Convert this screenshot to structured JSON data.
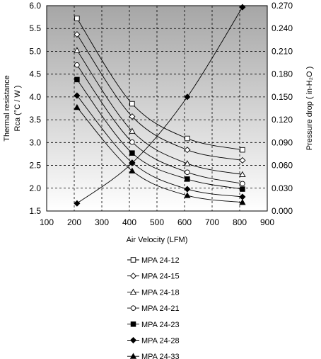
{
  "chart_data": {
    "type": "line",
    "title": "",
    "xlabel": "Air Velocity (LFM)",
    "ylabel_left_line1": "Thermal resistance",
    "ylabel_left_line2": "Rca (°C / W )",
    "ylabel_right": "Pressure drop ( in-H₂O )",
    "xlim": [
      100,
      900
    ],
    "ylim_left": [
      1.5,
      6.0
    ],
    "ylim_right": [
      0.0,
      0.27
    ],
    "x_ticks": [
      100,
      200,
      300,
      400,
      500,
      600,
      700,
      800,
      900
    ],
    "x_tick_labels": [
      "100",
      "200",
      "300",
      "400",
      "500",
      "600",
      "700",
      "800",
      "900"
    ],
    "y_left_ticks": [
      1.5,
      2.0,
      2.5,
      3.0,
      3.5,
      4.0,
      4.5,
      5.0,
      5.5,
      6.0
    ],
    "y_left_tick_labels": [
      "1.5",
      "2.0",
      "2.5",
      "3.0",
      "3.5",
      "4.0",
      "4.5",
      "5.0",
      "5.5",
      "6.0"
    ],
    "y_right_ticks": [
      0.0,
      0.03,
      0.06,
      0.09,
      0.12,
      0.15,
      0.18,
      0.21,
      0.24,
      0.27
    ],
    "y_right_tick_labels": [
      "0.000",
      "0.030",
      "0.060",
      "0.090",
      "0.120",
      "0.150",
      "0.180",
      "0.210",
      "0.240",
      "0.270"
    ],
    "grid": true,
    "background": "gradient gray",
    "legend_position": "below",
    "x": [
      210,
      410,
      610,
      810
    ],
    "series": [
      {
        "name": "MPA 24-12",
        "marker": "square-open",
        "axis": "left",
        "values": [
          5.72,
          3.85,
          3.09,
          2.84
        ]
      },
      {
        "name": "MPA 24-15",
        "marker": "diamond-open",
        "axis": "left",
        "values": [
          5.37,
          3.57,
          2.84,
          2.61
        ]
      },
      {
        "name": "MPA 24-18",
        "marker": "triangle-open",
        "axis": "left",
        "values": [
          5.02,
          3.25,
          2.54,
          2.3
        ]
      },
      {
        "name": "MPA 24-21",
        "marker": "circle-open",
        "axis": "left",
        "values": [
          4.7,
          3.01,
          2.35,
          2.1
        ]
      },
      {
        "name": "MPA 24-23",
        "marker": "square-filled",
        "axis": "left",
        "values": [
          4.38,
          2.77,
          2.2,
          1.98
        ]
      },
      {
        "name": "MPA 24-28",
        "marker": "diamond-filled",
        "axis": "left",
        "values": [
          4.03,
          2.56,
          1.98,
          1.81
        ]
      },
      {
        "name": "MPA 24-33",
        "marker": "triangle-filled",
        "axis": "left",
        "values": [
          3.77,
          2.38,
          1.84,
          1.69
        ]
      }
    ],
    "pressure_drop": {
      "axis": "right",
      "marker": "diamond-filled",
      "values": [
        0.01,
        0.063,
        0.15,
        0.268
      ]
    },
    "colors": {
      "line": "#000000",
      "grid": "#000000",
      "bg_top": "#a6a6a6",
      "bg_bottom": "#ffffff"
    }
  }
}
